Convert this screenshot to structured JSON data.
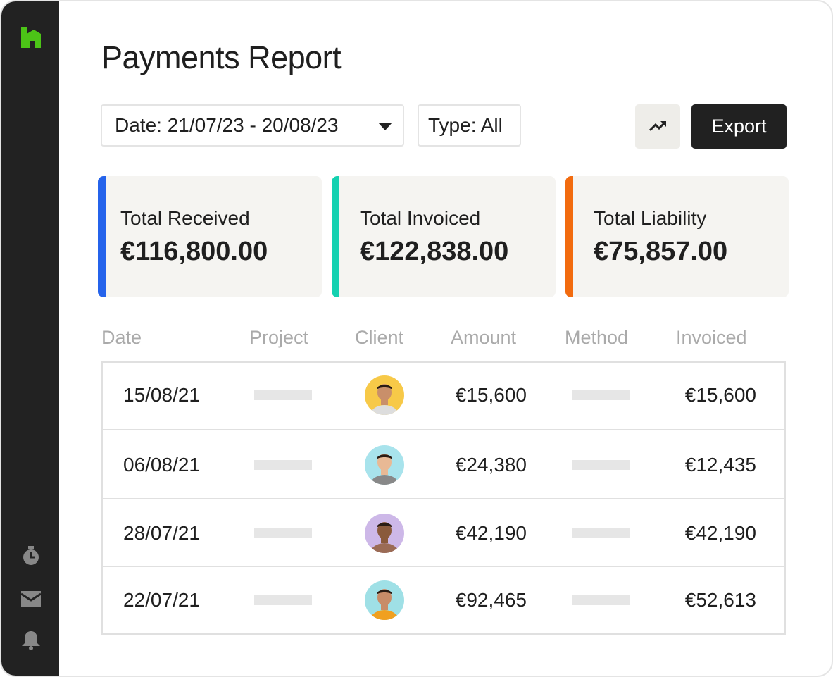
{
  "header": {
    "title": "Payments Report"
  },
  "filters": {
    "date": "Date: 21/07/23 - 20/08/23",
    "type": "Type: All"
  },
  "actions": {
    "export": "Export"
  },
  "summary": [
    {
      "label": "Total Received",
      "value": "€116,800.00",
      "color": "#2563eb"
    },
    {
      "label": "Total Invoiced",
      "value": "€122,838.00",
      "color": "#14d1b0"
    },
    {
      "label": "Total Liability",
      "value": "€75,857.00",
      "color": "#f26b0f"
    }
  ],
  "table": {
    "columns": [
      "Date",
      "Project",
      "Client",
      "Amount",
      "Method",
      "Invoiced"
    ],
    "rows": [
      {
        "date": "15/08/21",
        "amount": "€15,600",
        "invoiced": "€15,600"
      },
      {
        "date": "06/08/21",
        "amount": "€24,380",
        "invoiced": "€12,435"
      },
      {
        "date": "28/07/21",
        "amount": "€42,190",
        "invoiced": "€42,190"
      },
      {
        "date": "22/07/21",
        "amount": "€92,465",
        "invoiced": "€52,613"
      }
    ]
  }
}
